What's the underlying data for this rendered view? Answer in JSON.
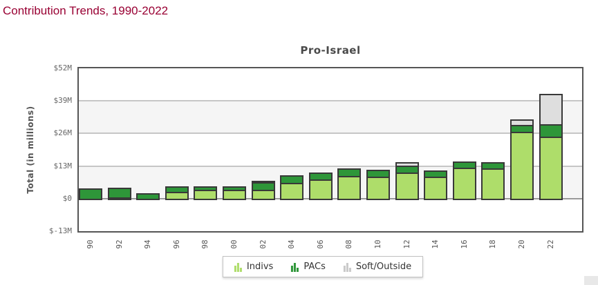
{
  "header": {
    "title": "Contribution Trends, 1990-2022"
  },
  "colors": {
    "page_title": "#990033",
    "chart_title": "#4a4a4a",
    "indivs_green": "#aedd6a",
    "pacs_green": "#2e9639",
    "soft_gray": "#dedede",
    "soft_legend_gray": "#c9c9c9",
    "bar_border": "#383838",
    "band_gray": "#f5f5f5",
    "gridline": "#c6c6c6",
    "zero_line": "#999999",
    "plot_border": "#555555",
    "tick_text": "#666666"
  },
  "chart_data": {
    "type": "bar",
    "stacked": true,
    "title": "Pro-Israel",
    "ylabel": "Total (in millions)",
    "ylim": [
      -13,
      52
    ],
    "grid": true,
    "legend_position": "bottom-center",
    "legend_icon": "bar-chart-icon",
    "yticks": [
      {
        "value": 52,
        "label": "$52M"
      },
      {
        "value": 39,
        "label": "$39M"
      },
      {
        "value": 26,
        "label": "$26M"
      },
      {
        "value": 13,
        "label": "$13M"
      },
      {
        "value": 0,
        "label": "$0"
      },
      {
        "value": -13,
        "label": "$-13M"
      }
    ],
    "categories": [
      "90",
      "92",
      "94",
      "96",
      "98",
      "00",
      "02",
      "04",
      "06",
      "08",
      "10",
      "12",
      "14",
      "16",
      "18",
      "20",
      "22"
    ],
    "series": [
      {
        "name": "Indivs",
        "color": "#aedd6a",
        "values": [
          0,
          0.8,
          0,
          3.2,
          4.1,
          4.2,
          4.2,
          7.0,
          8.3,
          9.6,
          9.4,
          11.0,
          9.3,
          12.9,
          12.6,
          27.2,
          25.4
        ]
      },
      {
        "name": "PACs",
        "color": "#2e9639",
        "values": [
          4.6,
          4.5,
          2.8,
          2.7,
          2.0,
          1.9,
          3.6,
          3.5,
          3.3,
          3.6,
          3.4,
          3.2,
          3.0,
          2.9,
          2.9,
          3.3,
          5.5
        ]
      },
      {
        "name": "Soft/Outside",
        "color": "#dedede",
        "legend_color": "#c9c9c9",
        "values": [
          0,
          0,
          0,
          0,
          0,
          0,
          1.2,
          0,
          0,
          0,
          0,
          1.8,
          0,
          0,
          0,
          2.7,
          12.8
        ]
      }
    ]
  }
}
